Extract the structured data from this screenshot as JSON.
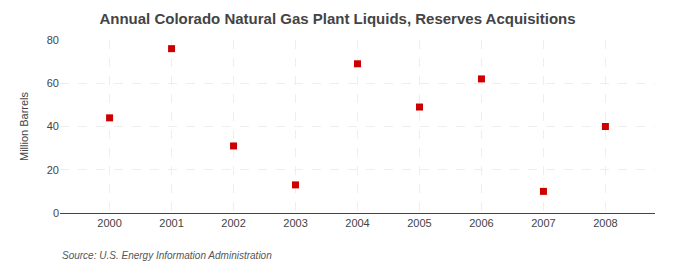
{
  "chart_data": {
    "type": "scatter",
    "title": "Annual Colorado Natural Gas Plant Liquids, Reserves Acquisitions",
    "ylabel": "Million Barrels",
    "annotations": [
      "Source: U.S. Energy Information Administration"
    ],
    "x": [
      2000,
      2001,
      2002,
      2003,
      2004,
      2005,
      2006,
      2007,
      2008
    ],
    "values": [
      44,
      76,
      31,
      13,
      69,
      49,
      62,
      10,
      40
    ],
    "color": "#CC0000",
    "marker": "square",
    "xlim": [
      1999.2,
      2008.8
    ],
    "xticks": [
      2000,
      2001,
      2002,
      2003,
      2004,
      2005,
      2006,
      2007,
      2008
    ],
    "ylim": [
      0,
      80
    ],
    "yticks": [
      0,
      20,
      40,
      60,
      80
    ],
    "grid": true
  }
}
